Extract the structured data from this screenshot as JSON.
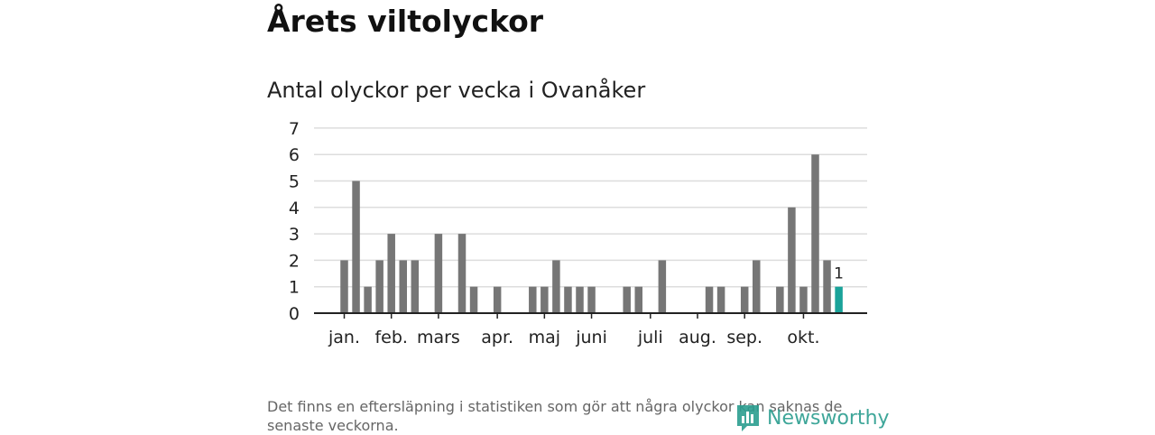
{
  "header": {
    "title": "Årets viltolyckor",
    "subtitle": "Antal olyckor per vecka i Ovanåker"
  },
  "chart_data": {
    "type": "bar",
    "title": "Antal olyckor per vecka i Ovanåker",
    "xlabel": "",
    "ylabel": "",
    "ylim": [
      0,
      7
    ],
    "yticks": [
      0,
      1,
      2,
      3,
      4,
      5,
      6,
      7
    ],
    "grid": true,
    "weeks": [
      1,
      2,
      3,
      4,
      5,
      6,
      7,
      8,
      9,
      10,
      11,
      12,
      13,
      14,
      15,
      16,
      17,
      18,
      19,
      20,
      21,
      22,
      23,
      24,
      25,
      26,
      27,
      28,
      29,
      30,
      31,
      32,
      33,
      34,
      35,
      36,
      37,
      38,
      39,
      40,
      41,
      42,
      43
    ],
    "values": [
      2,
      5,
      1,
      2,
      3,
      2,
      2,
      0,
      3,
      0,
      3,
      1,
      0,
      1,
      0,
      0,
      1,
      1,
      2,
      1,
      1,
      1,
      0,
      0,
      1,
      1,
      0,
      2,
      0,
      0,
      0,
      1,
      1,
      0,
      1,
      2,
      0,
      1,
      4,
      1,
      6,
      2,
      1
    ],
    "month_labels": [
      {
        "label": "jan.",
        "week": 1
      },
      {
        "label": "feb.",
        "week": 5
      },
      {
        "label": "mars",
        "week": 9
      },
      {
        "label": "apr.",
        "week": 14
      },
      {
        "label": "maj",
        "week": 18
      },
      {
        "label": "juni",
        "week": 22
      },
      {
        "label": "juli",
        "week": 27
      },
      {
        "label": "aug.",
        "week": 31
      },
      {
        "label": "sep.",
        "week": 35
      },
      {
        "label": "okt.",
        "week": 40
      }
    ],
    "highlight_index": 42,
    "highlight_label": "1",
    "colors": {
      "bar": "#767676",
      "highlight": "#1aa39a",
      "grid": "#dddddd",
      "axis": "#222222",
      "text": "#222222"
    }
  },
  "footer": {
    "note": "Det finns en eftersläpning i statistiken som gör att några olyckor kan saknas de senaste veckorna.",
    "brand": "Newsworthy",
    "brand_color": "#2a9d8f"
  }
}
